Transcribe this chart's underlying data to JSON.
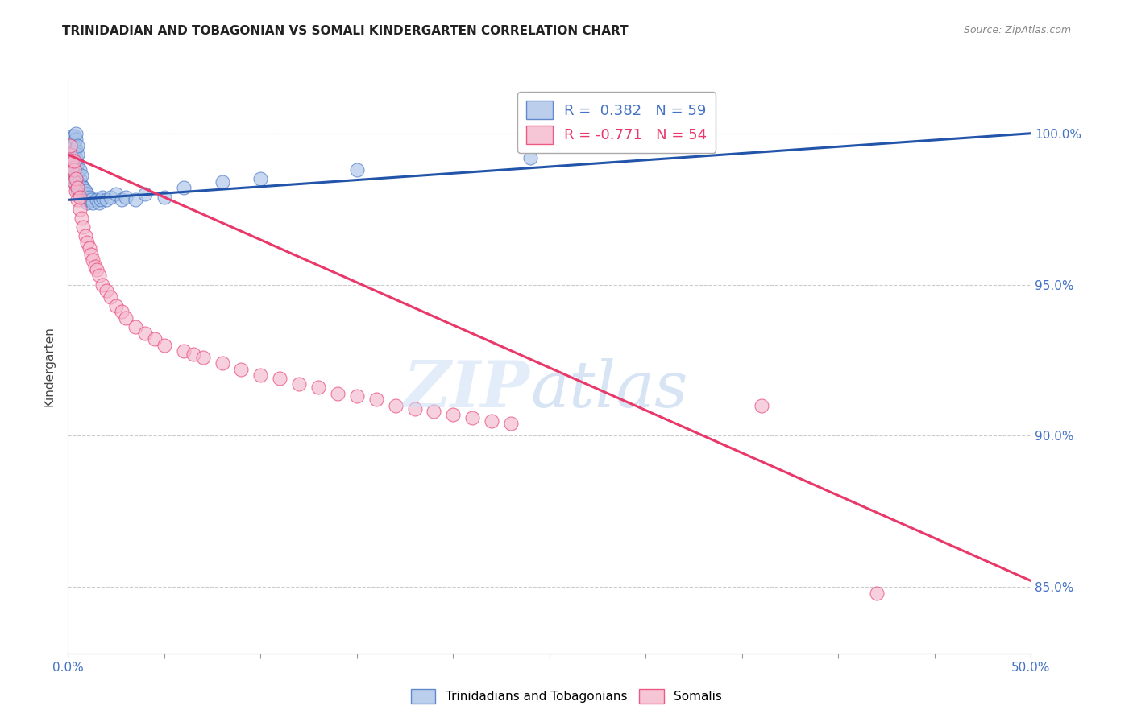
{
  "title": "TRINIDADIAN AND TOBAGONIAN VS SOMALI KINDERGARTEN CORRELATION CHART",
  "source": "Source: ZipAtlas.com",
  "ylabel": "Kindergarten",
  "ytick_labels": [
    "85.0%",
    "90.0%",
    "95.0%",
    "100.0%"
  ],
  "ytick_values": [
    0.85,
    0.9,
    0.95,
    1.0
  ],
  "xlim": [
    0.0,
    0.5
  ],
  "ylim": [
    0.828,
    1.018
  ],
  "background_color": "#ffffff",
  "grid_color": "#cccccc",
  "right_axis_label_color": "#4472c4",
  "legend_label1": "R =  0.382   N = 59",
  "legend_label2": "R = -0.771   N = 54",
  "legend_color1": "#4472c4",
  "legend_color2": "#e8396a",
  "tnt_color": "#aac4e8",
  "somali_color": "#f4b8ce",
  "trendline_color1": "#2255aa",
  "trendline_color2": "#e8396a",
  "tnt_x": [
    0.001,
    0.001,
    0.001,
    0.002,
    0.002,
    0.002,
    0.002,
    0.002,
    0.003,
    0.003,
    0.003,
    0.003,
    0.003,
    0.003,
    0.004,
    0.004,
    0.004,
    0.004,
    0.004,
    0.004,
    0.004,
    0.005,
    0.005,
    0.005,
    0.005,
    0.005,
    0.005,
    0.006,
    0.006,
    0.006,
    0.007,
    0.007,
    0.007,
    0.008,
    0.008,
    0.009,
    0.009,
    0.01,
    0.01,
    0.011,
    0.012,
    0.013,
    0.015,
    0.016,
    0.017,
    0.018,
    0.02,
    0.022,
    0.025,
    0.028,
    0.03,
    0.035,
    0.04,
    0.05,
    0.06,
    0.08,
    0.1,
    0.15,
    0.24
  ],
  "tnt_y": [
    0.99,
    0.993,
    0.996,
    0.988,
    0.991,
    0.994,
    0.997,
    0.999,
    0.985,
    0.988,
    0.991,
    0.994,
    0.996,
    0.999,
    0.983,
    0.986,
    0.989,
    0.992,
    0.995,
    0.998,
    1.0,
    0.981,
    0.984,
    0.987,
    0.99,
    0.993,
    0.996,
    0.982,
    0.985,
    0.988,
    0.98,
    0.983,
    0.986,
    0.979,
    0.982,
    0.978,
    0.981,
    0.977,
    0.98,
    0.979,
    0.978,
    0.977,
    0.978,
    0.977,
    0.978,
    0.979,
    0.978,
    0.979,
    0.98,
    0.978,
    0.979,
    0.978,
    0.98,
    0.979,
    0.982,
    0.984,
    0.985,
    0.988,
    0.992
  ],
  "somali_x": [
    0.001,
    0.001,
    0.002,
    0.002,
    0.003,
    0.003,
    0.003,
    0.004,
    0.004,
    0.005,
    0.005,
    0.006,
    0.006,
    0.007,
    0.008,
    0.009,
    0.01,
    0.011,
    0.012,
    0.013,
    0.014,
    0.015,
    0.016,
    0.018,
    0.02,
    0.022,
    0.025,
    0.028,
    0.03,
    0.035,
    0.04,
    0.045,
    0.05,
    0.06,
    0.065,
    0.07,
    0.08,
    0.09,
    0.1,
    0.11,
    0.12,
    0.13,
    0.14,
    0.15,
    0.16,
    0.17,
    0.18,
    0.19,
    0.2,
    0.21,
    0.22,
    0.23,
    0.36,
    0.42
  ],
  "somali_y": [
    0.993,
    0.996,
    0.988,
    0.991,
    0.984,
    0.988,
    0.991,
    0.981,
    0.985,
    0.978,
    0.982,
    0.975,
    0.979,
    0.972,
    0.969,
    0.966,
    0.964,
    0.962,
    0.96,
    0.958,
    0.956,
    0.955,
    0.953,
    0.95,
    0.948,
    0.946,
    0.943,
    0.941,
    0.939,
    0.936,
    0.934,
    0.932,
    0.93,
    0.928,
    0.927,
    0.926,
    0.924,
    0.922,
    0.92,
    0.919,
    0.917,
    0.916,
    0.914,
    0.913,
    0.912,
    0.91,
    0.909,
    0.908,
    0.907,
    0.906,
    0.905,
    0.904,
    0.91,
    0.848
  ],
  "trendline1_x": [
    0.0,
    0.5
  ],
  "trendline1_y": [
    0.978,
    1.0
  ],
  "trendline2_x": [
    0.0,
    0.5
  ],
  "trendline2_y": [
    0.993,
    0.852
  ],
  "xtick_positions": [
    0.0,
    0.05,
    0.1,
    0.15,
    0.2,
    0.25,
    0.3,
    0.35,
    0.4,
    0.45,
    0.5
  ]
}
